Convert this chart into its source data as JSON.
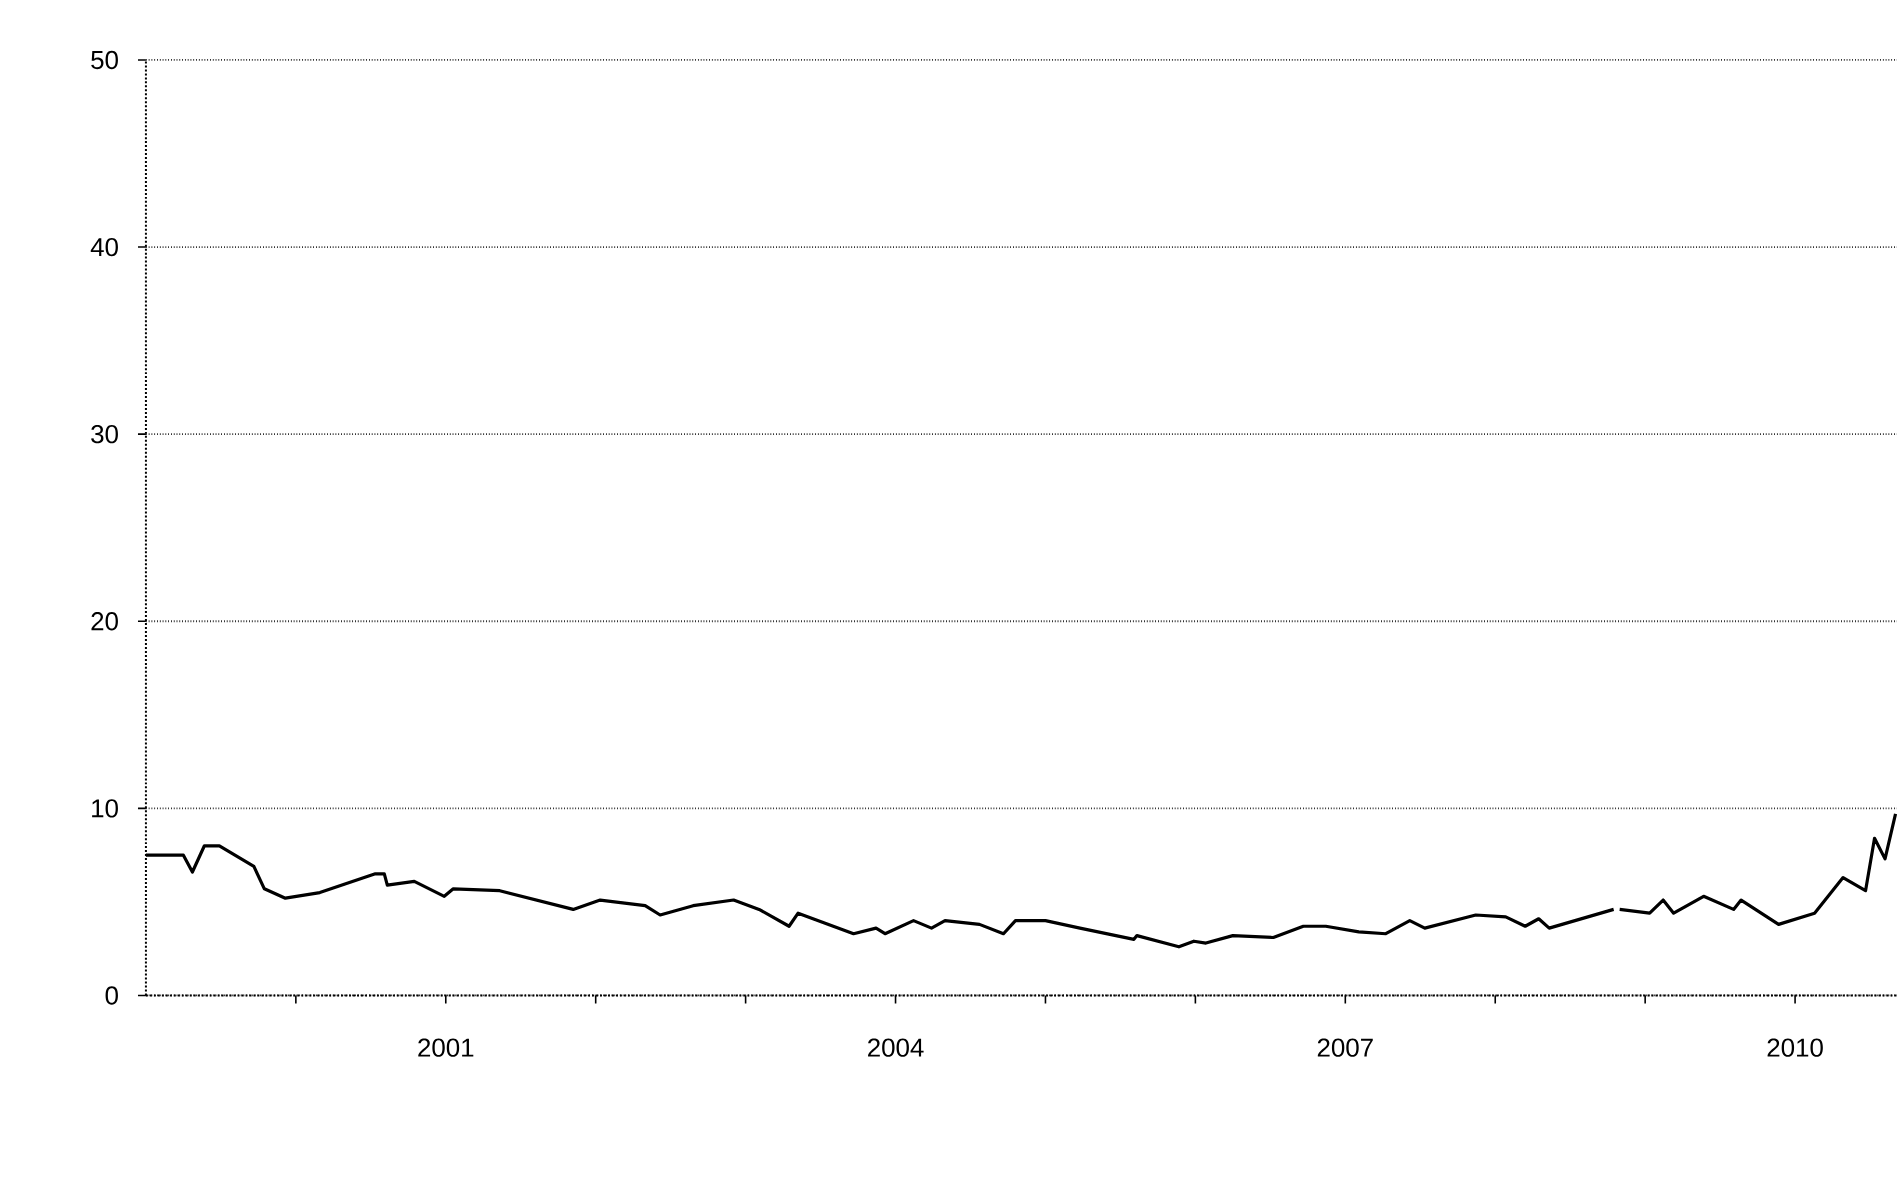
{
  "chart_data": {
    "type": "line",
    "x": [
      1999.0,
      1999.25,
      1999.31,
      1999.39,
      1999.49,
      1999.72,
      1999.79,
      1999.93,
      2000.16,
      2000.53,
      2000.59,
      2000.61,
      2000.79,
      2000.99,
      2001.05,
      2001.36,
      2001.85,
      2002.03,
      2002.33,
      2002.43,
      2002.65,
      2002.92,
      2003.09,
      2003.29,
      2003.35,
      2003.72,
      2003.87,
      2003.93,
      2004.12,
      2004.24,
      2004.33,
      2004.56,
      2004.72,
      2004.8,
      2005.0,
      2005.23,
      2005.59,
      2005.61,
      2005.89,
      2005.99,
      2006.07,
      2006.25,
      2006.52,
      2006.72,
      2006.87,
      2007.09,
      2007.27,
      2007.43,
      2007.53,
      2007.87,
      2008.07,
      2008.2,
      2008.29,
      2008.36,
      2008.79,
      2008.81,
      2008.83,
      2009.03,
      2009.12,
      2009.19,
      2009.39,
      2009.59,
      2009.64,
      2009.89,
      2010.13,
      2010.32,
      2010.47,
      2010.53,
      2010.6,
      2010.67
    ],
    "series": [
      {
        "color": "#000000",
        "values": [
          7.5,
          7.5,
          6.6,
          8.0,
          8.0,
          6.9,
          5.7,
          5.2,
          5.5,
          6.5,
          6.5,
          5.9,
          6.1,
          5.3,
          5.7,
          5.6,
          4.6,
          5.1,
          4.8,
          4.3,
          4.8,
          5.1,
          4.6,
          3.7,
          4.4,
          3.3,
          3.6,
          3.3,
          4.0,
          3.6,
          4.0,
          3.8,
          3.3,
          4.0,
          4.0,
          3.6,
          3.0,
          3.2,
          2.6,
          2.9,
          2.8,
          3.2,
          3.1,
          3.7,
          3.7,
          3.4,
          3.3,
          4.0,
          3.6,
          4.3,
          4.2,
          3.7,
          4.1,
          3.6,
          4.6,
          null,
          4.6,
          4.4,
          5.1,
          4.4,
          5.3,
          4.6,
          5.1,
          3.8,
          4.4,
          6.3,
          5.6,
          8.4,
          7.3,
          9.7
        ]
      }
    ],
    "xlim": [
      1999,
      2010.68
    ],
    "xticks": [
      {
        "value": 2000,
        "label": null
      },
      2001,
      {
        "value": 2002,
        "label": null
      },
      {
        "value": 2003,
        "label": null
      },
      2004,
      {
        "value": 2005,
        "label": null
      },
      {
        "value": 2006,
        "label": null
      },
      2007,
      {
        "value": 2008,
        "label": null
      },
      {
        "value": 2009,
        "label": null
      },
      2010
    ],
    "ylim": [
      0,
      50
    ],
    "yticks": [
      0,
      10,
      20,
      30,
      40,
      50
    ],
    "grid": "y",
    "line_style": "solid",
    "marker": "none",
    "legend": false
  }
}
